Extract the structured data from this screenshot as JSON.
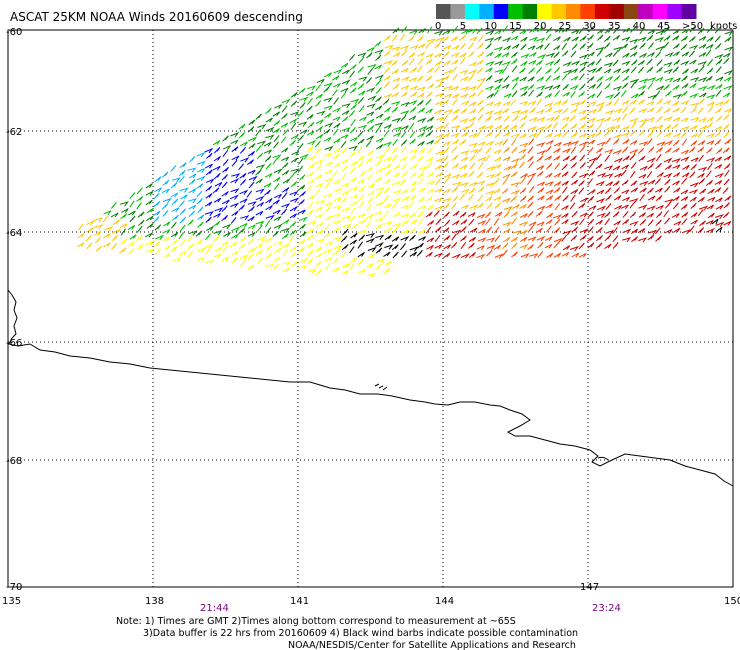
{
  "title": "ASCAT 25KM NOAA Winds 20160609 descending",
  "legend": {
    "labels": [
      "0",
      "5",
      "10",
      "15",
      "20",
      "25",
      "30",
      "35",
      "40",
      "45",
      ">50"
    ],
    "unit": "knots",
    "colors": [
      "#555555",
      "#999999",
      "#00ffff",
      "#00b0ff",
      "#0000ff",
      "#00c000",
      "#008000",
      "#ffff00",
      "#ffc800",
      "#ff8c00",
      "#ff4000",
      "#d00000",
      "#a00000",
      "#8b4513",
      "#c000c0",
      "#ff00ff",
      "#a000ff",
      "#6000a0"
    ]
  },
  "axes": {
    "lon_labels": [
      "135",
      "138",
      "141",
      "144",
      "147",
      "150"
    ],
    "lat_labels": [
      "-60",
      "-62",
      "-64",
      "-66",
      "-68",
      "-70"
    ]
  },
  "times": [
    "21:44",
    "23:24"
  ],
  "notes": [
    "Note: 1) Times are GMT 2)Times along bottom correspond to measurement at ~65S",
    "3)Data buffer is 22 hrs from 20160609 4) Black wind barbs indicate possible contamination",
    "NOAA/NESDIS/Center for Satellite Applications and Research"
  ]
}
